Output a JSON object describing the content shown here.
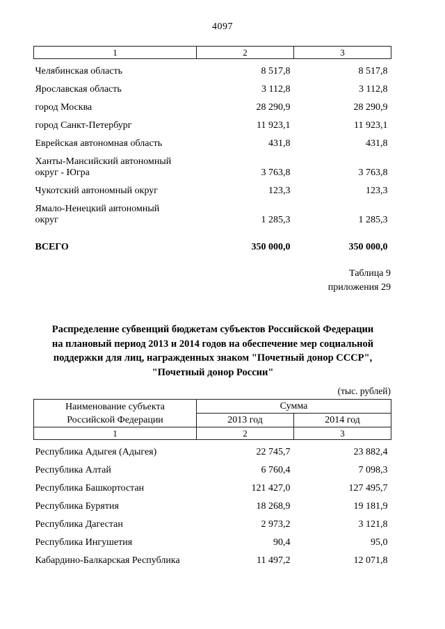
{
  "page": {
    "number": "4097"
  },
  "table1": {
    "header_cols": [
      "1",
      "2",
      "3"
    ],
    "rows": [
      {
        "name": "Челябинская область",
        "y2013": "8 517,8",
        "y2014": "8 517,8"
      },
      {
        "name": "Ярославская область",
        "y2013": "3 112,8",
        "y2014": "3 112,8"
      },
      {
        "name": "город Москва",
        "y2013": "28 290,9",
        "y2014": "28 290,9"
      },
      {
        "name": "город Санкт-Петербург",
        "y2013": "11 923,1",
        "y2014": "11 923,1"
      },
      {
        "name": "Еврейская автономная область",
        "y2013": "431,8",
        "y2014": "431,8"
      },
      {
        "name": "Ханты-Мансийский автономный\nокруг - Югра",
        "y2013": "3 763,8",
        "y2014": "3 763,8"
      },
      {
        "name": "Чукотский автономный округ",
        "y2013": "123,3",
        "y2014": "123,3"
      },
      {
        "name": "Ямало-Ненецкий автономный\nокруг",
        "y2013": "1 285,3",
        "y2014": "1 285,3"
      }
    ],
    "total": {
      "label": "ВСЕГО",
      "y2013": "350 000,0",
      "y2014": "350 000,0"
    }
  },
  "caption": {
    "line1": "Таблица 9",
    "line2": "приложения 29"
  },
  "section": {
    "title_lines": [
      "Распределение субвенций бюджетам субъектов Российской Федерации",
      "на плановый период 2013 и 2014 годов на обеспечение мер социальной",
      "поддержки для лиц, награжденных  знаком \"Почетный донор СССР\",",
      "\"Почетный донор России\""
    ],
    "units": "(тыс. рублей)"
  },
  "table2": {
    "header": {
      "col1": "Наименование субъекта\nРоссийской Федерации",
      "sum": "Сумма",
      "y2013": "2013 год",
      "y2014": "2014 год",
      "num_cols": [
        "1",
        "2",
        "3"
      ]
    },
    "rows": [
      {
        "name": "Республика Адыгея (Адыгея)",
        "y2013": "22 745,7",
        "y2014": "23 882,4"
      },
      {
        "name": "Республика Алтай",
        "y2013": "6 760,4",
        "y2014": "7 098,3"
      },
      {
        "name": "Республика Башкортостан",
        "y2013": "121 427,0",
        "y2014": "127 495,7"
      },
      {
        "name": "Республика Бурятия",
        "y2013": "18 268,9",
        "y2014": "19 181,9"
      },
      {
        "name": "Республика Дагестан",
        "y2013": "2 973,2",
        "y2014": "3 121,8"
      },
      {
        "name": "Республика Ингушетия",
        "y2013": "90,4",
        "y2014": "95,0"
      },
      {
        "name": "Кабардино-Балкарская Республика",
        "y2013": "11 497,2",
        "y2014": "12 071,8"
      }
    ]
  }
}
